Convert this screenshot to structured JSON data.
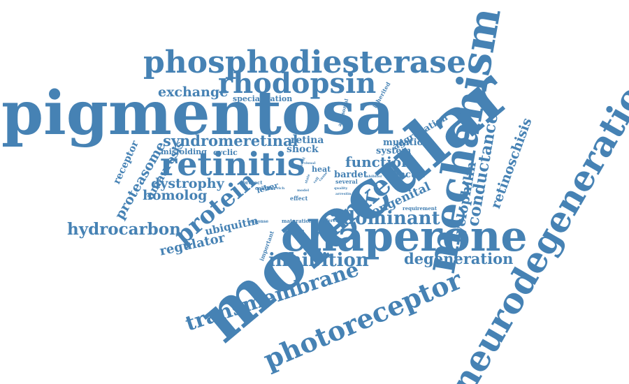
{
  "color": "#4682b4",
  "words": [
    "pigmentosa",
    "molecular",
    "mechanism",
    "chaperone",
    "neurodegeneration",
    "phosphodiesterase",
    "retinitis",
    "rhodopsin",
    "photoreceptor",
    "transmembrane",
    "linked",
    "protein",
    "dominant",
    "inhibition",
    "hydrocarbon",
    "degeneration",
    "cyclophilin",
    "conductance",
    "retinoschisis",
    "syndromeretinal",
    "function",
    "exchange",
    "congenital",
    "dystrophy",
    "amaurosis",
    "proteasome",
    "homolog",
    "regulator",
    "ubiquitin",
    "receptor",
    "specialization",
    "aggregation",
    "retina",
    "shock",
    "mutation",
    "system",
    "factor",
    "bardet",
    "heat",
    "misfolding",
    "cyclic",
    "leber",
    "several",
    "effect",
    "maturation",
    "requirement",
    "important",
    "inherited",
    "autosomal",
    "protect",
    "cellular",
    "response",
    "different",
    "quality",
    "arrestin",
    "inhibitor",
    "cause",
    "cell",
    "visual",
    "model",
    "control",
    "rich",
    "state"
  ]
}
